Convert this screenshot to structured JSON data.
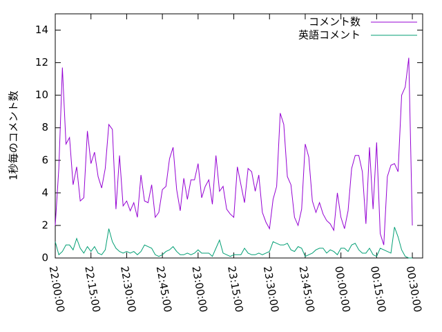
{
  "chart_data": {
    "type": "line",
    "ylabel": "1秒毎のコメント数",
    "x": [
      "22:00:00",
      "22:01:30",
      "22:03:00",
      "22:04:30",
      "22:06:00",
      "22:07:30",
      "22:09:00",
      "22:10:30",
      "22:12:00",
      "22:13:30",
      "22:15:00",
      "22:16:30",
      "22:18:00",
      "22:19:30",
      "22:21:00",
      "22:22:30",
      "22:24:00",
      "22:25:30",
      "22:27:00",
      "22:28:30",
      "22:30:00",
      "22:31:30",
      "22:33:00",
      "22:34:30",
      "22:36:00",
      "22:37:30",
      "22:39:00",
      "22:40:30",
      "22:42:00",
      "22:43:30",
      "22:45:00",
      "22:46:30",
      "22:48:00",
      "22:49:30",
      "22:51:00",
      "22:52:30",
      "22:54:00",
      "22:55:30",
      "22:57:00",
      "22:58:30",
      "23:00:00",
      "23:01:30",
      "23:03:00",
      "23:04:30",
      "23:06:00",
      "23:07:30",
      "23:09:00",
      "23:10:30",
      "23:12:00",
      "23:13:30",
      "23:15:00",
      "23:16:30",
      "23:18:00",
      "23:19:30",
      "23:21:00",
      "23:22:30",
      "23:24:00",
      "23:25:30",
      "23:27:00",
      "23:28:30",
      "23:30:00",
      "23:31:30",
      "23:33:00",
      "23:34:30",
      "23:36:00",
      "23:37:30",
      "23:39:00",
      "23:40:30",
      "23:42:00",
      "23:43:30",
      "23:45:00",
      "23:46:30",
      "23:48:00",
      "23:49:30",
      "23:51:00",
      "23:52:30",
      "23:54:00",
      "23:55:30",
      "23:57:00",
      "23:58:30",
      "00:00:00",
      "00:01:30",
      "00:03:00",
      "00:04:30",
      "00:06:00",
      "00:07:30",
      "00:09:00",
      "00:10:30",
      "00:12:00",
      "00:13:30",
      "00:15:00",
      "00:16:30",
      "00:18:00",
      "00:19:30",
      "00:21:00",
      "00:22:30",
      "00:24:00",
      "00:25:30",
      "00:27:00",
      "00:28:30",
      "00:30:00"
    ],
    "series": [
      {
        "name": "コメント数",
        "color": "#9400d3",
        "values": [
          2.0,
          5.5,
          11.7,
          7.0,
          7.4,
          4.5,
          5.6,
          3.5,
          3.7,
          7.8,
          5.8,
          6.5,
          5.0,
          4.3,
          5.5,
          8.2,
          7.9,
          3.0,
          6.3,
          3.2,
          3.5,
          2.9,
          3.4,
          2.5,
          5.1,
          3.5,
          3.4,
          4.5,
          2.5,
          2.8,
          4.2,
          4.4,
          6.1,
          6.8,
          4.2,
          2.9,
          4.9,
          3.6,
          4.8,
          4.8,
          5.8,
          3.7,
          4.4,
          4.8,
          3.3,
          6.3,
          4.1,
          4.4,
          3.0,
          2.7,
          2.5,
          5.6,
          4.5,
          3.4,
          5.5,
          5.3,
          4.1,
          5.1,
          2.8,
          2.2,
          1.8,
          3.6,
          4.4,
          8.9,
          8.2,
          5.0,
          4.5,
          2.5,
          2.0,
          3.0,
          7.0,
          6.2,
          3.5,
          2.8,
          3.4,
          2.7,
          2.3,
          2.1,
          1.7,
          4.0,
          2.5,
          1.8,
          2.9,
          5.5,
          6.3,
          6.3,
          5.3,
          2.1,
          6.8,
          3.0,
          7.1,
          1.5,
          0.8,
          5.0,
          5.7,
          5.8,
          5.3,
          10.0,
          10.5,
          12.3,
          2.0
        ]
      },
      {
        "name": "英語コメント",
        "color": "#009e73",
        "values": [
          1.0,
          0.2,
          0.4,
          0.8,
          0.8,
          0.5,
          1.2,
          0.6,
          0.3,
          0.7,
          0.4,
          0.7,
          0.3,
          0.2,
          0.5,
          1.8,
          1.0,
          0.6,
          0.4,
          0.3,
          0.4,
          0.3,
          0.4,
          0.2,
          0.4,
          0.8,
          0.7,
          0.6,
          0.2,
          0.1,
          0.2,
          0.4,
          0.5,
          0.7,
          0.4,
          0.2,
          0.2,
          0.3,
          0.2,
          0.3,
          0.5,
          0.3,
          0.3,
          0.3,
          0.1,
          0.6,
          1.1,
          0.3,
          0.2,
          0.1,
          0.2,
          0.2,
          0.2,
          0.6,
          0.3,
          0.2,
          0.2,
          0.3,
          0.2,
          0.3,
          0.4,
          1.0,
          0.9,
          0.8,
          0.8,
          0.9,
          0.5,
          0.4,
          0.7,
          0.6,
          0.1,
          0.2,
          0.3,
          0.5,
          0.6,
          0.6,
          0.3,
          0.5,
          0.4,
          0.2,
          0.6,
          0.6,
          0.4,
          0.8,
          0.9,
          0.5,
          0.3,
          0.3,
          0.6,
          0.2,
          0.1,
          0.6,
          0.5,
          0.4,
          0.3,
          1.9,
          1.3,
          0.5,
          0.1,
          0,
          0
        ]
      }
    ],
    "xlim": [
      "22:00:00",
      "00:34:20"
    ],
    "xticks": [
      "22:00:00",
      "22:15:00",
      "22:30:00",
      "22:45:00",
      "23:00:00",
      "23:15:00",
      "23:30:00",
      "23:45:00",
      "00:00:00",
      "00:15:00",
      "00:30:00"
    ],
    "ylim": [
      0,
      15
    ],
    "yticks": [
      0,
      2,
      4,
      6,
      8,
      10,
      12,
      14
    ],
    "legend": "top-right"
  }
}
